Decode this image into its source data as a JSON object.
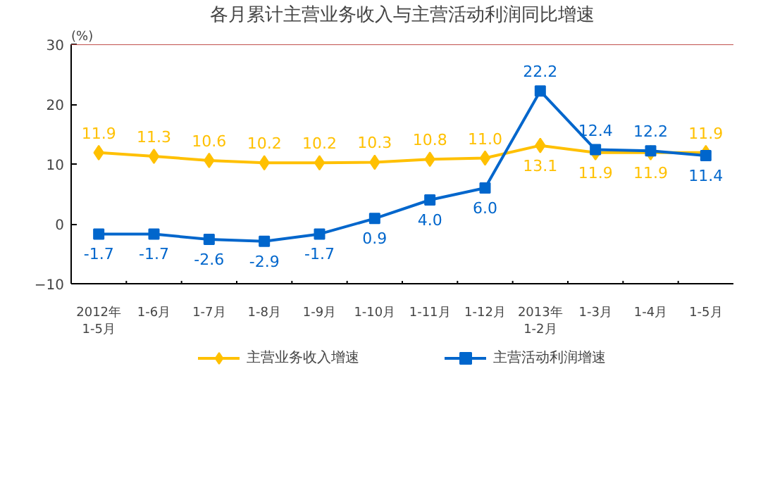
{
  "chart_data": {
    "type": "line",
    "title": "各月累计主营业务收入与主营活动利润同比增速",
    "ylabel": "(%)",
    "categories": [
      "2012年\n1-5月",
      "1-6月",
      "1-7月",
      "1-8月",
      "1-9月",
      "1-10月",
      "1-11月",
      "1-12月",
      "2013年\n1-2月",
      "1-3月",
      "1-4月",
      "1-5月"
    ],
    "series": [
      {
        "name": "主营业务收入增速",
        "color": "#ffc000",
        "marker": "diamond",
        "values": [
          11.9,
          11.3,
          10.6,
          10.2,
          10.2,
          10.3,
          10.8,
          11.0,
          13.1,
          11.9,
          11.9,
          11.9
        ],
        "value_labels": [
          "11.9",
          "11.3",
          "10.6",
          "10.2",
          "10.2",
          "10.3",
          "10.8",
          "11.0",
          "13.1",
          "11.9",
          "11.9",
          "11.9"
        ]
      },
      {
        "name": "主营活动利润增速",
        "color": "#0066cc",
        "marker": "square",
        "values": [
          -1.7,
          -1.7,
          -2.6,
          -2.9,
          -1.7,
          0.9,
          4.0,
          6.0,
          22.2,
          12.4,
          12.2,
          11.4
        ],
        "value_labels": [
          "-1.7",
          "-1.7",
          "-2.6",
          "-2.9",
          "-1.7",
          "0.9",
          "4.0",
          "6.0",
          "22.2",
          "12.4",
          "12.2",
          "11.4"
        ]
      }
    ],
    "ylim": [
      -10,
      30
    ],
    "yticks": [
      -10,
      0,
      10,
      20,
      30
    ],
    "grid": false,
    "legend": "bottom",
    "data_labels": true,
    "ref_lines": [
      {
        "axis": "y",
        "value": 30,
        "color": "#c0504d"
      }
    ]
  }
}
